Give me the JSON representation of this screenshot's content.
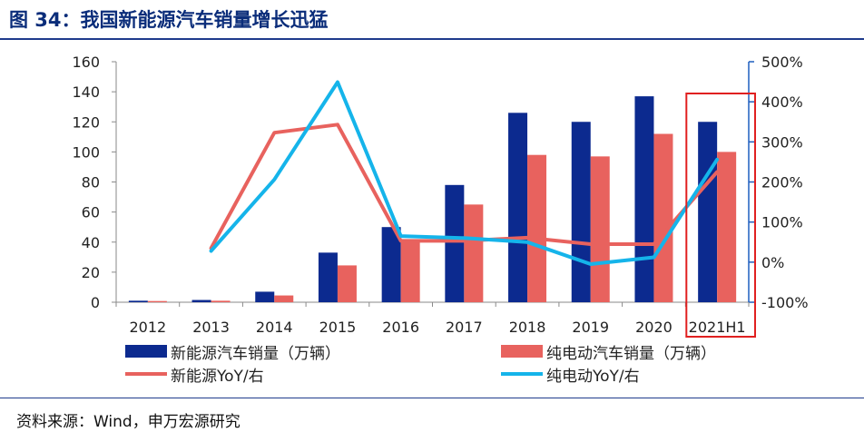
{
  "title": "图 34：我国新能源汽车销量增长迅猛",
  "source": "资料来源：Wind，申万宏源研究",
  "colors": {
    "nev_bar": "#0c2a8f",
    "ev_bar": "#e8625e",
    "nev_line": "#e8625e",
    "ev_line": "#15b4ea",
    "axis_right": "#1f5fbf",
    "highlight": "#e02020"
  },
  "chart_data": {
    "type": "bar",
    "categories": [
      "2012",
      "2013",
      "2014",
      "2015",
      "2016",
      "2017",
      "2018",
      "2019",
      "2020",
      "2021H1"
    ],
    "series": [
      {
        "name": "新能源汽车销量（万辆）",
        "kind": "bar",
        "axis": "left",
        "values": [
          1.0,
          1.5,
          7,
          33,
          50,
          78,
          126,
          120,
          137,
          120
        ]
      },
      {
        "name": "纯电动汽车销量（万辆）",
        "kind": "bar",
        "axis": "left",
        "values": [
          0.8,
          1.0,
          4.5,
          24.5,
          40,
          65,
          98,
          97,
          112,
          100
        ]
      },
      {
        "name": "新能源YoY/右",
        "kind": "line",
        "axis": "right",
        "values": [
          null,
          35,
          323,
          343,
          53,
          53,
          61,
          null,
          null,
          225
        ]
      },
      {
        "name": "纯电动YoY/右",
        "kind": "line",
        "axis": "right",
        "values": [
          null,
          28,
          206,
          449,
          65,
          60,
          50,
          -5,
          12,
          256
        ]
      }
    ],
    "yAxisLeft": {
      "min": 0,
      "max": 160,
      "step": 20,
      "ticks": [
        "0",
        "20",
        "40",
        "60",
        "80",
        "100",
        "120",
        "140",
        "160"
      ]
    },
    "yAxisRight": {
      "min": -100,
      "max": 500,
      "step": 100,
      "ticks": [
        "-100%",
        "0%",
        "100%",
        "200%",
        "300%",
        "400%",
        "500%"
      ]
    },
    "highlight_category": "2021H1",
    "legend_position": "bottom",
    "grid": false
  }
}
